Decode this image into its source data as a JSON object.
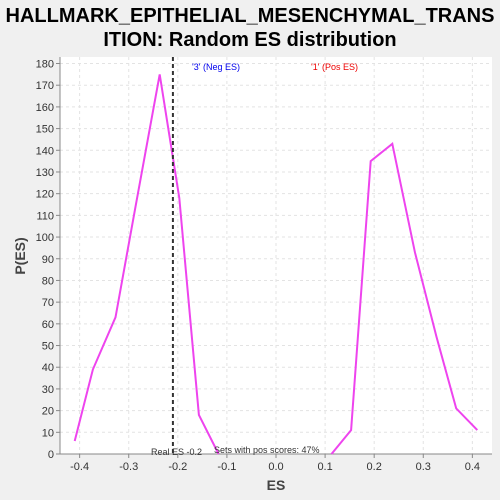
{
  "chart_data": {
    "type": "line",
    "title_line1": "HALLMARK_EPITHELIAL_MESENCHYMAL_TRANS",
    "title_line2": "ITION: Random ES distribution",
    "xlabel": "ES",
    "ylabel": "P(ES)",
    "xlim": [
      -0.44,
      0.44
    ],
    "ylim": [
      0,
      183
    ],
    "x_ticks": [
      -0.4,
      -0.3,
      -0.2,
      -0.1,
      0.0,
      0.1,
      0.2,
      0.3,
      0.4
    ],
    "x_tick_labels": [
      "-0.4",
      "-0.3",
      "-0.2",
      "-0.1",
      "0.0",
      "0.1",
      "0.2",
      "0.3",
      "0.4"
    ],
    "y_ticks": [
      0,
      10,
      20,
      30,
      40,
      50,
      60,
      70,
      80,
      90,
      100,
      110,
      120,
      130,
      140,
      150,
      160,
      170,
      180
    ],
    "grid": true,
    "series": [
      {
        "color": "#ee44ee",
        "segments": [
          {
            "x": [
              -0.41,
              -0.373,
              -0.327,
              -0.287,
              -0.237,
              -0.197,
              -0.157,
              -0.117
            ],
            "y": [
              6,
              39,
              63,
              113,
              175,
              118,
              18,
              0
            ]
          },
          {
            "x": [
              0.113,
              0.153,
              0.193,
              0.237,
              0.283,
              0.327,
              0.367,
              0.41
            ],
            "y": [
              0,
              11,
              135,
              143,
              93,
              54,
              21,
              11
            ]
          }
        ]
      }
    ],
    "legend": [
      {
        "label": "'3' (Neg ES)",
        "color": "#0000ee"
      },
      {
        "label": "'1' (Pos ES)",
        "color": "#ee0000"
      }
    ],
    "real_es": -0.2,
    "real_es_line_x": -0.21,
    "real_es_label": "Real ES -0.2",
    "pos_scores_label": "Sets with pos scores: 47%"
  }
}
